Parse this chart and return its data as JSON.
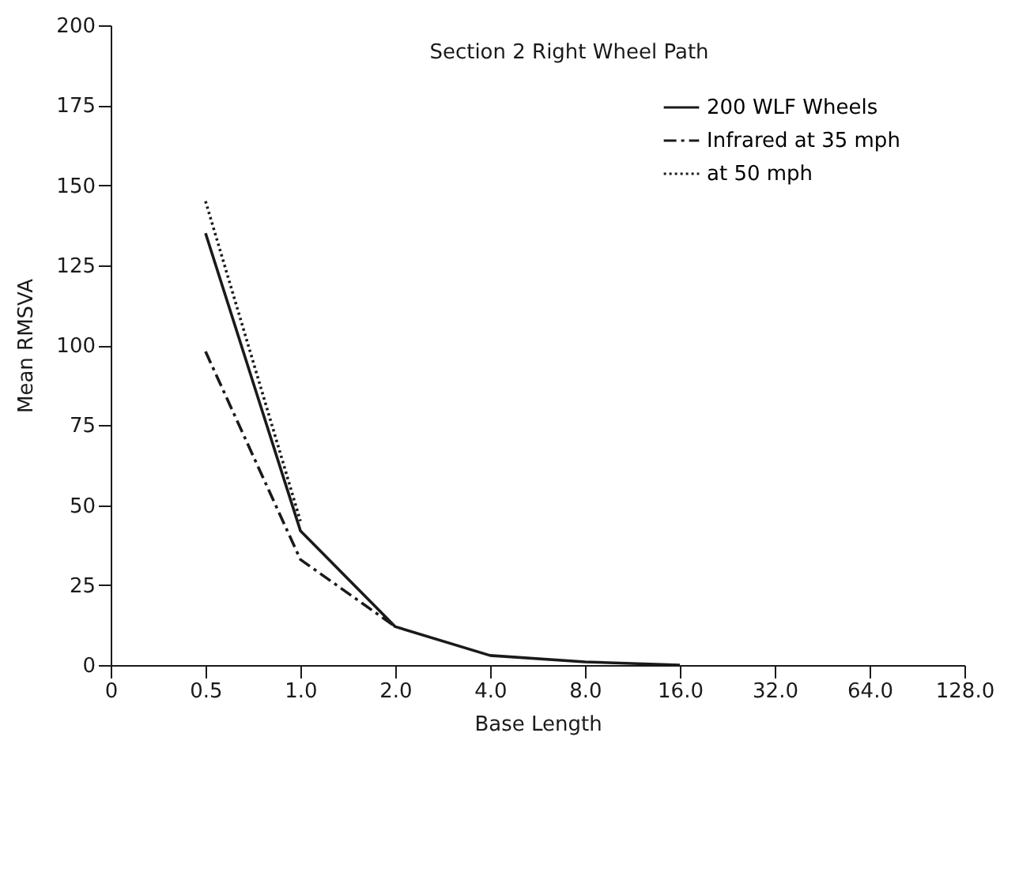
{
  "chart_data": {
    "type": "line",
    "title": "Section 2 Right Wheel Path",
    "xlabel": "Base Length",
    "ylabel": "Mean RMSVA",
    "categories": [
      "0",
      "0.5",
      "1.0",
      "2.0",
      "4.0",
      "8.0",
      "16.0",
      "32.0",
      "64.0",
      "128.0"
    ],
    "series": [
      {
        "name": "200 WLF Wheels",
        "color": "#1a1a1a",
        "line_style": "solid",
        "values": [
          null,
          135,
          42,
          12,
          3,
          1,
          0,
          null,
          null,
          null
        ]
      },
      {
        "name": "Infrared at 35 mph",
        "color": "#1a1a1a",
        "line_style": "dashdot",
        "values": [
          null,
          98,
          33,
          12,
          null,
          null,
          null,
          null,
          null,
          null
        ]
      },
      {
        "name": "at 50 mph",
        "color": "#1a1a1a",
        "line_style": "dotted",
        "values": [
          null,
          145,
          45,
          null,
          null,
          null,
          null,
          null,
          null,
          null
        ]
      }
    ],
    "ylim": [
      0,
      200
    ],
    "yticks": [
      0,
      25,
      50,
      75,
      100,
      125,
      150,
      175,
      200
    ],
    "grid": false,
    "legend": "top right",
    "marker": "none"
  }
}
